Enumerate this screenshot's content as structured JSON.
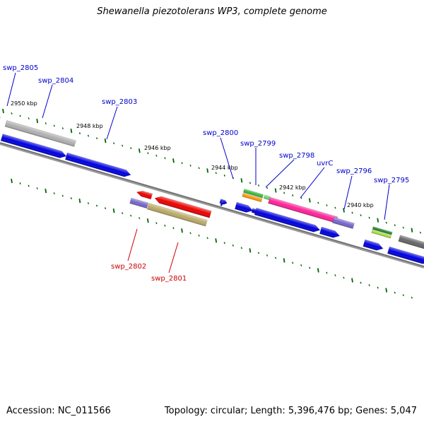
{
  "title": "Shewanella piezotolerans WP3, complete genome",
  "footer": {
    "accession": "Accession: NC_011566",
    "summary": "Topology: circular; Length: 5,396,476 bp; Genes: 5,047"
  },
  "colors": {
    "forward_label": "#0000cc",
    "reverse_label": "#cc0000",
    "tick": "#006600",
    "backbone": "#777777"
  },
  "kbp_labels": [
    "2950 kbp",
    "2948 kbp",
    "2946 kbp",
    "2944 kbp",
    "2942 kbp",
    "2940 kbp"
  ],
  "gene_labels": {
    "forward": [
      "swp_2805",
      "swp_2804",
      "swp_2803",
      "swp_2800",
      "swp_2799",
      "swp_2798",
      "uvrC",
      "swp_2796",
      "swp_2795"
    ],
    "reverse": [
      "swp_2802",
      "swp_2801"
    ]
  }
}
